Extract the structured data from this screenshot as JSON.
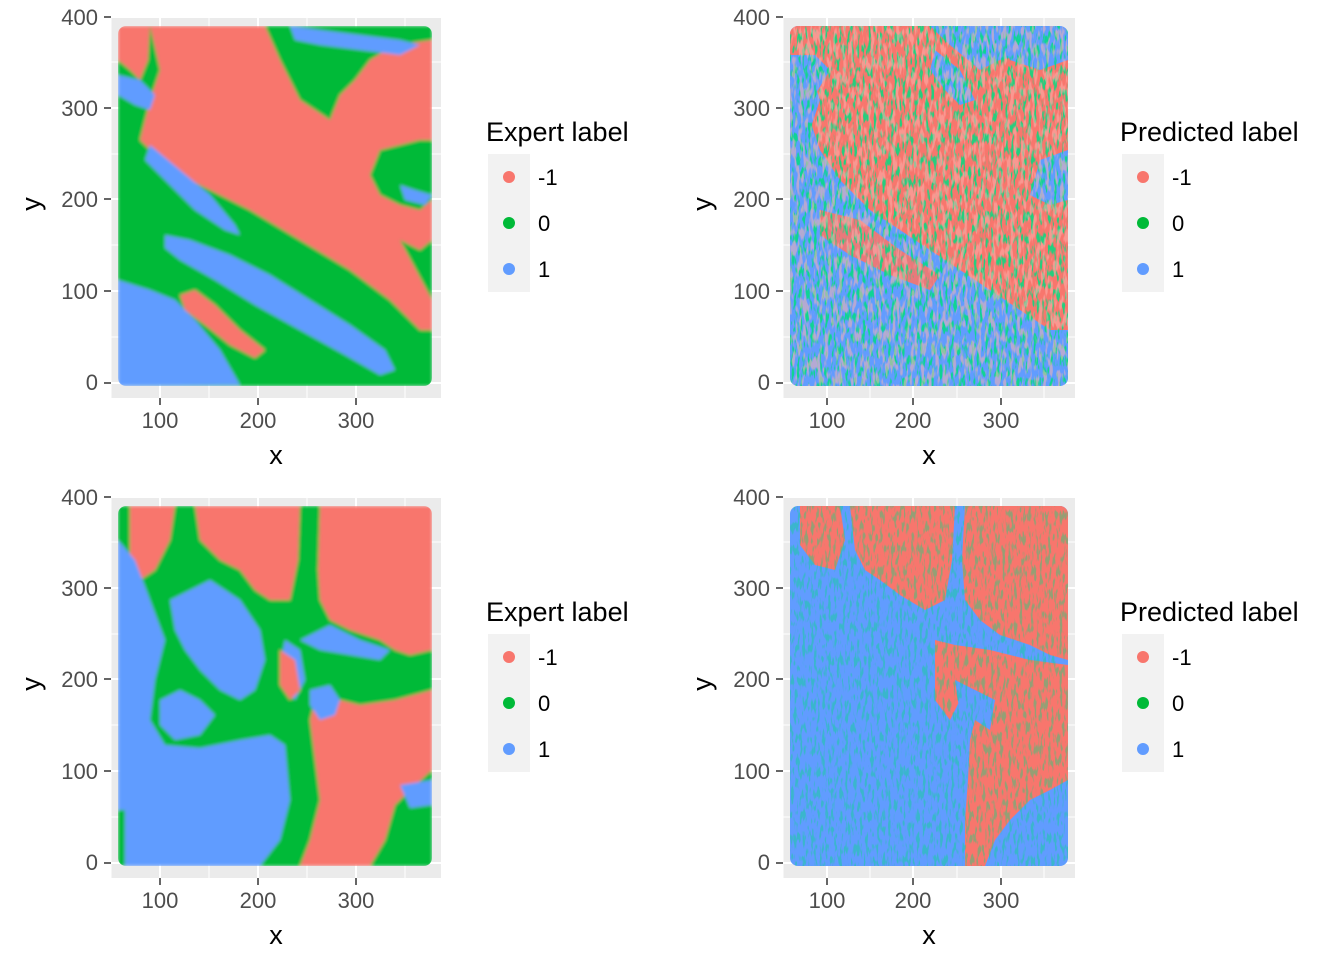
{
  "colors": {
    "neg1": "#F8766D",
    "zero": "#00BA38",
    "one": "#619CFF",
    "panel_bg": "#EBEBEB",
    "grid": "#FFFFFF",
    "legend_key_bg": "#F2F2F2"
  },
  "chart_data": [
    {
      "type": "scatter",
      "panel": "top-left",
      "xlabel": "x",
      "ylabel": "y",
      "xticks": [
        "100",
        "200",
        "300"
      ],
      "yticks": [
        "0",
        "100",
        "200",
        "300",
        "400"
      ],
      "xlim": [
        55,
        380
      ],
      "ylim": [
        -10,
        400
      ],
      "legend_title": "Expert label",
      "legend": [
        "-1",
        "0",
        "1"
      ],
      "data_extent": {
        "x": [
          65,
          370
        ],
        "y": [
          0,
          390
        ]
      },
      "description": "Spatial label map: a large -1 region in the upper right, a band of 0 across the lower-left diagonal with 1-labelled elongated streaks, and a 1 region in the lower left with a -1 patch."
    },
    {
      "type": "scatter",
      "panel": "top-right",
      "xlabel": "x",
      "ylabel": "y",
      "xticks": [
        "100",
        "200",
        "300"
      ],
      "yticks": [
        "0",
        "100",
        "200",
        "300",
        "400"
      ],
      "xlim": [
        55,
        380
      ],
      "ylim": [
        -10,
        400
      ],
      "legend_title": "Predicted label",
      "legend": [
        "-1",
        "0",
        "1"
      ],
      "data_extent": {
        "x": [
          65,
          370
        ],
        "y": [
          0,
          390
        ]
      },
      "description": "Predicted labels: mostly -1 in the upper right, mostly 1 in the lower left and left edge, with scattered speckles of 0 and -1 along the diagonal boundary."
    },
    {
      "type": "scatter",
      "panel": "bottom-left",
      "xlabel": "x",
      "ylabel": "y",
      "xticks": [
        "100",
        "200",
        "300"
      ],
      "yticks": [
        "0",
        "100",
        "200",
        "300",
        "400"
      ],
      "xlim": [
        55,
        380
      ],
      "ylim": [
        -10,
        400
      ],
      "legend_title": "Expert label",
      "legend": [
        "-1",
        "0",
        "1"
      ],
      "data_extent": {
        "x": [
          65,
          370
        ],
        "y": [
          0,
          390
        ]
      },
      "description": "Spatial label map: 1 dominates the left and lower-left, -1 occupies the right side and top-middle, with branching 0 bands separating the regions."
    },
    {
      "type": "scatter",
      "panel": "bottom-right",
      "xlabel": "x",
      "ylabel": "y",
      "xticks": [
        "100",
        "200",
        "300"
      ],
      "yticks": [
        "0",
        "100",
        "200",
        "300",
        "400"
      ],
      "xlim": [
        55,
        380
      ],
      "ylim": [
        -10,
        400
      ],
      "legend_title": "Predicted label",
      "legend": [
        "-1",
        "0",
        "1"
      ],
      "data_extent": {
        "x": [
          65,
          370
        ],
        "y": [
          0,
          390
        ]
      },
      "description": "Predicted labels: 1 covers most of the left and center, -1 covers the upper right and right, with sparse 0 speckles."
    }
  ]
}
